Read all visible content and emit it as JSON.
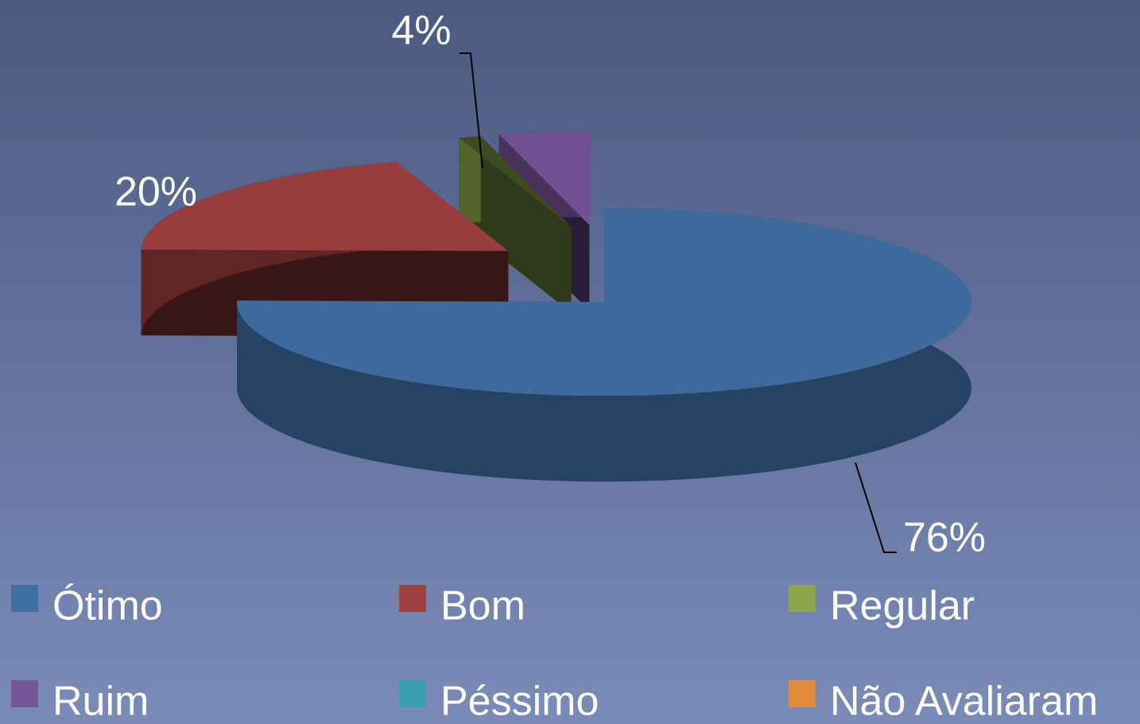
{
  "chart_data": {
    "type": "pie3d",
    "categories": [
      "Ótimo",
      "Bom",
      "Regular",
      "Ruim",
      "Péssimo",
      "Não Avaliaram"
    ],
    "values": [
      76,
      20,
      1,
      4,
      0,
      0
    ],
    "value_labels": [
      "76%",
      "20%",
      null,
      "4%",
      null,
      null
    ],
    "colors": [
      "#4170a6",
      "#a04040",
      "#8aa54a",
      "#76549a",
      "#3aa0b0",
      "#e08a3c"
    ],
    "legend": "bottom"
  }
}
